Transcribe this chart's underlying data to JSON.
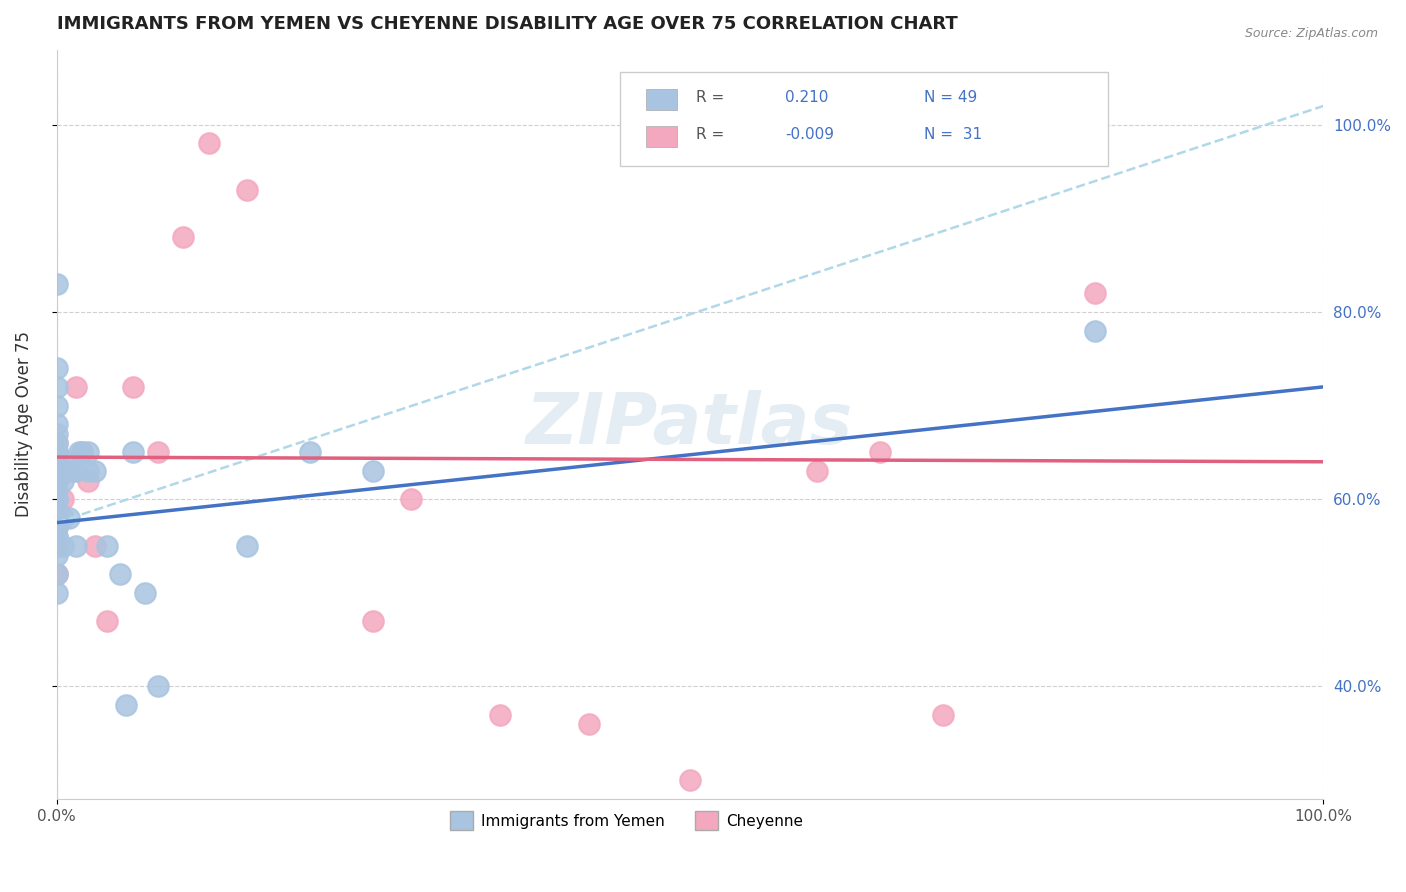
{
  "title": "IMMIGRANTS FROM YEMEN VS CHEYENNE DISABILITY AGE OVER 75 CORRELATION CHART",
  "source": "Source: ZipAtlas.com",
  "xlabel": "",
  "ylabel": "Disability Age Over 75",
  "xlim": [
    0.0,
    1.0
  ],
  "ylim": [
    0.28,
    1.08
  ],
  "ytick_labels": [
    "40.0%",
    "60.0%",
    "80.0%",
    "100.0%"
  ],
  "ytick_vals": [
    0.4,
    0.6,
    0.8,
    1.0
  ],
  "xtick_labels": [
    "0.0%",
    "100.0%"
  ],
  "xtick_vals": [
    0.0,
    1.0
  ],
  "legend_r1": "R =",
  "legend_v1": "0.210",
  "legend_n1": "N = 49",
  "legend_r2": "R =",
  "legend_v2": "-0.009",
  "legend_n2": "N =  31",
  "blue_color": "#a8c4e0",
  "pink_color": "#f4a8c0",
  "line_blue": "#4472c4",
  "line_pink": "#e06080",
  "line_dash": "#b0d8e8",
  "text_blue": "#4472c4",
  "watermark": "ZIPatlas",
  "background": "#ffffff",
  "grid_color": "#d0d0d0",
  "blue_scatter_x": [
    0.0,
    0.0,
    0.0,
    0.0,
    0.0,
    0.0,
    0.0,
    0.0,
    0.0,
    0.0,
    0.0,
    0.0,
    0.0,
    0.0,
    0.0,
    0.0,
    0.0,
    0.0,
    0.0,
    0.0,
    0.0,
    0.0,
    0.0,
    0.0,
    0.0,
    0.0,
    0.005,
    0.005,
    0.005,
    0.008,
    0.01,
    0.012,
    0.015,
    0.015,
    0.018,
    0.02,
    0.025,
    0.025,
    0.03,
    0.04,
    0.05,
    0.055,
    0.06,
    0.07,
    0.08,
    0.15,
    0.2,
    0.25,
    0.82
  ],
  "blue_scatter_y": [
    0.5,
    0.52,
    0.54,
    0.56,
    0.56,
    0.57,
    0.58,
    0.58,
    0.59,
    0.6,
    0.6,
    0.61,
    0.62,
    0.63,
    0.63,
    0.64,
    0.64,
    0.65,
    0.65,
    0.66,
    0.67,
    0.68,
    0.7,
    0.72,
    0.74,
    0.83,
    0.55,
    0.58,
    0.62,
    0.64,
    0.58,
    0.63,
    0.55,
    0.63,
    0.65,
    0.65,
    0.63,
    0.65,
    0.63,
    0.55,
    0.52,
    0.38,
    0.65,
    0.5,
    0.4,
    0.55,
    0.65,
    0.63,
    0.78
  ],
  "pink_scatter_x": [
    0.0,
    0.0,
    0.0,
    0.0,
    0.0,
    0.0,
    0.0,
    0.0,
    0.0,
    0.0,
    0.005,
    0.01,
    0.015,
    0.02,
    0.025,
    0.03,
    0.04,
    0.06,
    0.08,
    0.1,
    0.12,
    0.15,
    0.25,
    0.28,
    0.35,
    0.42,
    0.5,
    0.6,
    0.65,
    0.7,
    0.82
  ],
  "pink_scatter_y": [
    0.52,
    0.55,
    0.57,
    0.59,
    0.6,
    0.62,
    0.63,
    0.64,
    0.65,
    0.66,
    0.6,
    0.63,
    0.72,
    0.65,
    0.62,
    0.55,
    0.47,
    0.72,
    0.65,
    0.88,
    0.98,
    0.93,
    0.47,
    0.6,
    0.37,
    0.36,
    0.3,
    0.63,
    0.65,
    0.37,
    0.82
  ],
  "blue_trend_x": [
    0.0,
    1.0
  ],
  "blue_trend_y": [
    0.575,
    0.72
  ],
  "pink_trend_y": [
    0.645,
    0.64
  ],
  "dashed_trend_x": [
    0.0,
    1.0
  ],
  "dashed_trend_y": [
    0.575,
    1.02
  ]
}
